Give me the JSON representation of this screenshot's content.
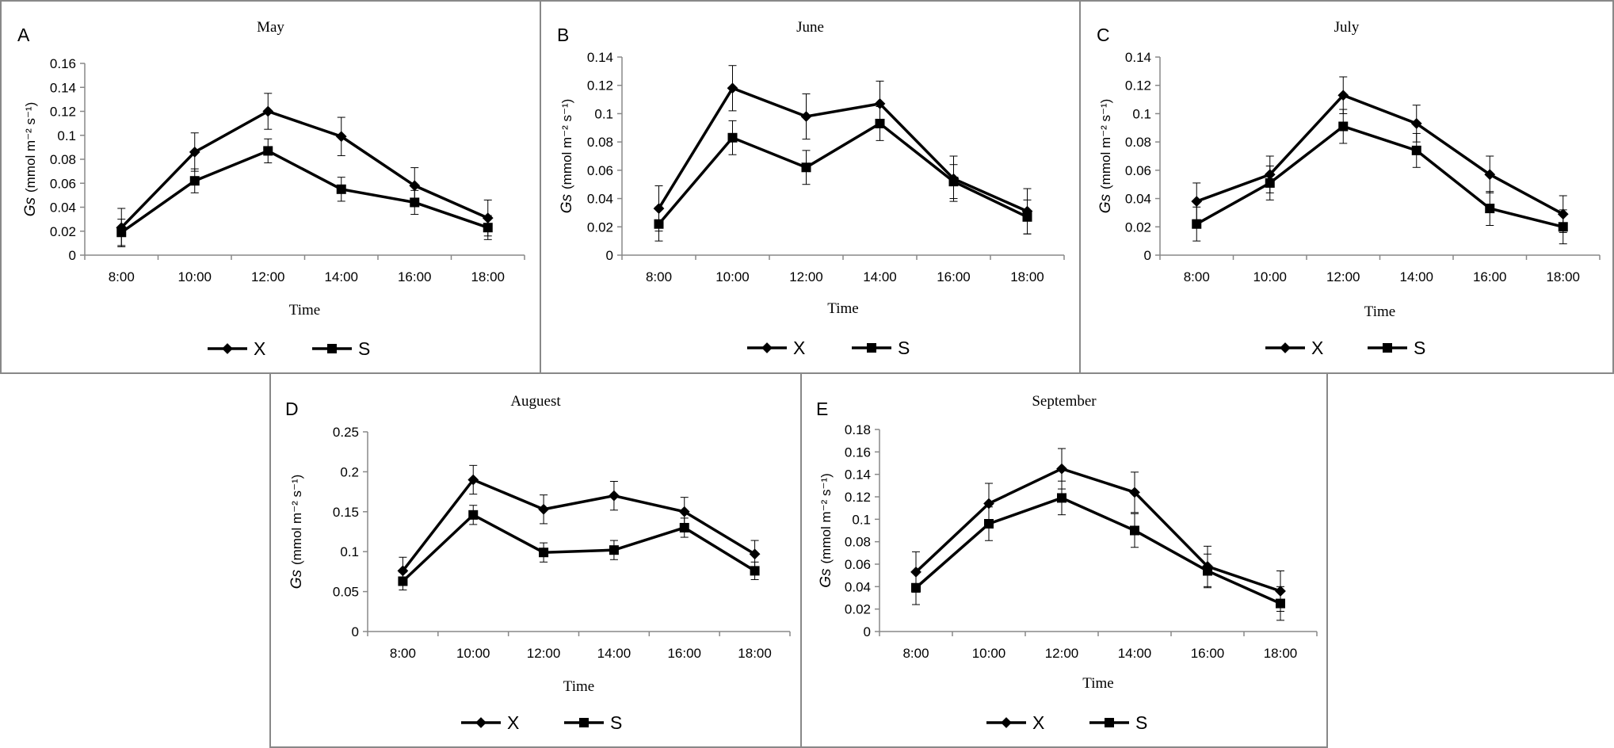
{
  "chart_data": [
    {
      "type": "line",
      "panel": "A",
      "title": "May",
      "xlabel": "Time",
      "ylabel_main": "Gs",
      "ylabel_unit": "(mmol m⁻² s⁻¹)",
      "categories": [
        "8:00",
        "10:00",
        "12:00",
        "14:00",
        "16:00",
        "18:00"
      ],
      "ylim": [
        0,
        0.16
      ],
      "yticks": [
        "0",
        "0.02",
        "0.04",
        "0.06",
        "0.08",
        "0.1",
        "0.12",
        "0.14",
        "0.16"
      ],
      "grid": false,
      "legend": "bottom",
      "series": [
        {
          "name": "X",
          "marker": "diamond",
          "values": [
            0.023,
            0.086,
            0.12,
            0.099,
            0.058,
            0.031
          ],
          "errors": [
            0.016,
            0.016,
            0.015,
            0.016,
            0.015,
            0.015
          ]
        },
        {
          "name": "S",
          "marker": "square",
          "values": [
            0.019,
            0.062,
            0.087,
            0.055,
            0.044,
            0.023
          ],
          "errors": [
            0.011,
            0.01,
            0.01,
            0.01,
            0.01,
            0.01
          ]
        }
      ]
    },
    {
      "type": "line",
      "panel": "B",
      "title": "June",
      "xlabel": "Time",
      "ylabel_main": "Gs",
      "ylabel_unit": "(mmol m⁻² s⁻¹)",
      "categories": [
        "8:00",
        "10:00",
        "12:00",
        "14:00",
        "16:00",
        "18:00"
      ],
      "ylim": [
        0,
        0.14
      ],
      "yticks": [
        "0",
        "0.02",
        "0.04",
        "0.06",
        "0.08",
        "0.1",
        "0.12",
        "0.14"
      ],
      "grid": false,
      "legend": "bottom",
      "series": [
        {
          "name": "X",
          "marker": "diamond",
          "values": [
            0.033,
            0.118,
            0.098,
            0.107,
            0.054,
            0.031
          ],
          "errors": [
            0.016,
            0.016,
            0.016,
            0.016,
            0.016,
            0.016
          ]
        },
        {
          "name": "S",
          "marker": "square",
          "values": [
            0.022,
            0.083,
            0.062,
            0.093,
            0.052,
            0.027
          ],
          "errors": [
            0.012,
            0.012,
            0.012,
            0.012,
            0.012,
            0.012
          ]
        }
      ]
    },
    {
      "type": "line",
      "panel": "C",
      "title": "July",
      "xlabel": "Time",
      "ylabel_main": "Gs",
      "ylabel_unit": "(mmol m⁻² s⁻¹)",
      "categories": [
        "8:00",
        "10:00",
        "12:00",
        "14:00",
        "16:00",
        "18:00"
      ],
      "ylim": [
        0,
        0.14
      ],
      "yticks": [
        "0",
        "0.02",
        "0.04",
        "0.06",
        "0.08",
        "0.1",
        "0.12",
        "0.14"
      ],
      "grid": false,
      "legend": "bottom",
      "series": [
        {
          "name": "X",
          "marker": "diamond",
          "values": [
            0.038,
            0.057,
            0.113,
            0.093,
            0.057,
            0.029
          ],
          "errors": [
            0.013,
            0.013,
            0.013,
            0.013,
            0.013,
            0.013
          ]
        },
        {
          "name": "S",
          "marker": "square",
          "values": [
            0.022,
            0.051,
            0.091,
            0.074,
            0.033,
            0.02
          ],
          "errors": [
            0.012,
            0.012,
            0.012,
            0.012,
            0.012,
            0.012
          ]
        }
      ]
    },
    {
      "type": "line",
      "panel": "D",
      "title": "Auguest",
      "xlabel": "Time",
      "ylabel_main": "Gs",
      "ylabel_unit": "(mmol m⁻² s⁻¹)",
      "categories": [
        "8:00",
        "10:00",
        "12:00",
        "14:00",
        "16:00",
        "18:00"
      ],
      "ylim": [
        0,
        0.25
      ],
      "yticks": [
        "0",
        "0.05",
        "0.1",
        "0.15",
        "0.2",
        "0.25"
      ],
      "grid": false,
      "legend": "bottom",
      "series": [
        {
          "name": "X",
          "marker": "diamond",
          "values": [
            0.076,
            0.19,
            0.153,
            0.17,
            0.15,
            0.097
          ],
          "errors": [
            0.017,
            0.018,
            0.018,
            0.018,
            0.018,
            0.017
          ]
        },
        {
          "name": "S",
          "marker": "square",
          "values": [
            0.063,
            0.146,
            0.099,
            0.102,
            0.13,
            0.076
          ],
          "errors": [
            0.011,
            0.012,
            0.012,
            0.012,
            0.012,
            0.011
          ]
        }
      ]
    },
    {
      "type": "line",
      "panel": "E",
      "title": "September",
      "xlabel": "Time",
      "ylabel_main": "Gs",
      "ylabel_unit": "(mmol m⁻² s⁻¹)",
      "categories": [
        "8:00",
        "10:00",
        "12:00",
        "14:00",
        "16:00",
        "18:00"
      ],
      "ylim": [
        0,
        0.18
      ],
      "yticks": [
        "0",
        "0.02",
        "0.04",
        "0.06",
        "0.08",
        "0.1",
        "0.12",
        "0.14",
        "0.16",
        "0.18"
      ],
      "grid": false,
      "legend": "bottom",
      "series": [
        {
          "name": "X",
          "marker": "diamond",
          "values": [
            0.053,
            0.114,
            0.145,
            0.124,
            0.058,
            0.036
          ],
          "errors": [
            0.018,
            0.018,
            0.018,
            0.018,
            0.018,
            0.018
          ]
        },
        {
          "name": "S",
          "marker": "square",
          "values": [
            0.039,
            0.096,
            0.119,
            0.09,
            0.054,
            0.025
          ],
          "errors": [
            0.015,
            0.015,
            0.015,
            0.015,
            0.015,
            0.015
          ]
        }
      ]
    }
  ]
}
